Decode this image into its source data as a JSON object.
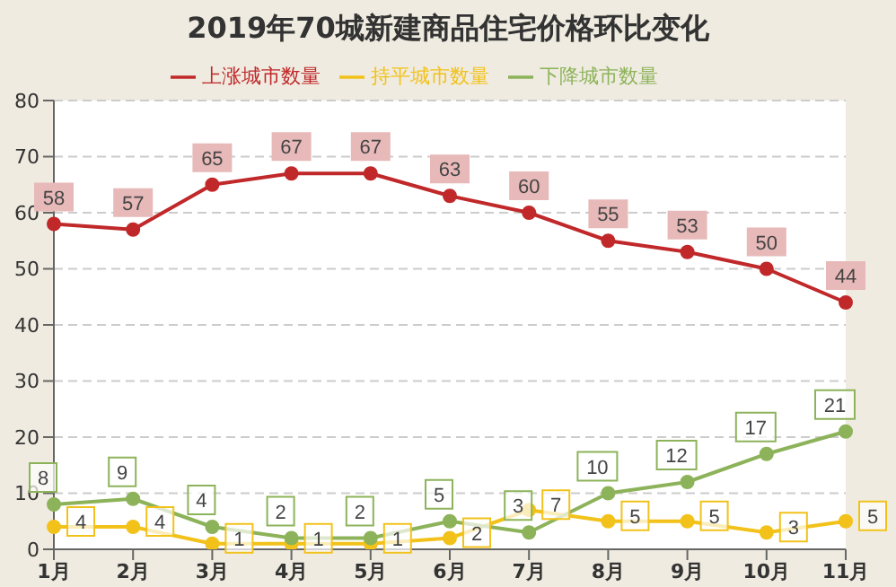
{
  "chart_data": {
    "type": "line",
    "title": "2019年70城新建商品住宅价格环比变化",
    "categories": [
      "1月",
      "2月",
      "3月",
      "4月",
      "5月",
      "6月",
      "7月",
      "8月",
      "9月",
      "10月",
      "11月"
    ],
    "series": [
      {
        "name": "上涨城市数量",
        "color": "#c0282a",
        "values": [
          58,
          57,
          65,
          67,
          67,
          63,
          60,
          55,
          53,
          50,
          44
        ]
      },
      {
        "name": "持平城市数量",
        "color": "#f2c21b",
        "values": [
          4,
          4,
          1,
          1,
          1,
          2,
          7,
          5,
          5,
          3,
          5
        ]
      },
      {
        "name": "下降城市数量",
        "color": "#8db35a",
        "values": [
          8,
          9,
          4,
          2,
          2,
          5,
          3,
          10,
          12,
          17,
          21
        ]
      }
    ],
    "ylim": [
      0,
      80
    ],
    "yticks": [
      0,
      10,
      20,
      30,
      40,
      50,
      60,
      70,
      80
    ],
    "grid": "y",
    "legend": "top",
    "marker": "circle",
    "line_style": "solid",
    "data_labels": true
  }
}
